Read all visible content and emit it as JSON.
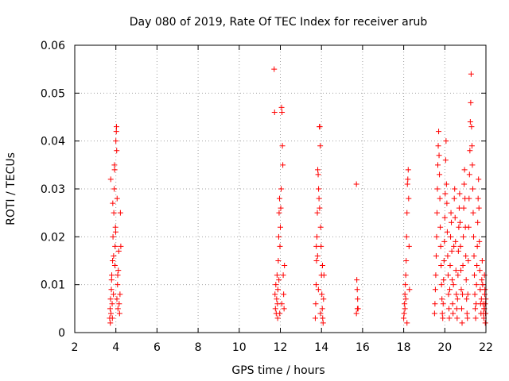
{
  "chart_data": {
    "type": "scatter",
    "title": "Day 080 of 2019, Rate Of TEC Index for receiver arub",
    "xlabel": "GPS time / hours",
    "ylabel": "ROTI / TECUs",
    "xlim": [
      2,
      22
    ],
    "ylim": [
      0,
      0.06
    ],
    "x_ticks": [
      2,
      4,
      6,
      8,
      10,
      12,
      14,
      16,
      18,
      20,
      22
    ],
    "y_ticks": [
      0,
      0.01,
      0.02,
      0.03,
      0.04,
      0.05,
      0.06
    ],
    "x_tick_labels": [
      "2",
      "4",
      "6",
      "8",
      "10",
      "12",
      "14",
      "16",
      "18",
      "20",
      "22"
    ],
    "y_tick_labels": [
      "0",
      "0.01",
      "0.02",
      "0.03",
      "0.04",
      "0.05",
      "0.06"
    ],
    "grid": true,
    "grid_style": "dotted",
    "marker": "+",
    "color": "#ff0000",
    "points": [
      [
        3.7,
        0.003
      ],
      [
        3.72,
        0.005
      ],
      [
        3.74,
        0.007
      ],
      [
        3.76,
        0.004
      ],
      [
        3.78,
        0.009
      ],
      [
        3.8,
        0.012
      ],
      [
        3.82,
        0.006
      ],
      [
        3.84,
        0.015
      ],
      [
        3.86,
        0.02
      ],
      [
        3.88,
        0.008
      ],
      [
        3.9,
        0.025
      ],
      [
        3.92,
        0.03
      ],
      [
        3.94,
        0.034
      ],
      [
        3.96,
        0.018
      ],
      [
        3.98,
        0.022
      ],
      [
        4.0,
        0.04
      ],
      [
        4.02,
        0.042
      ],
      [
        4.04,
        0.038
      ],
      [
        4.06,
        0.028
      ],
      [
        4.08,
        0.01
      ],
      [
        4.1,
        0.005
      ],
      [
        4.12,
        0.013
      ],
      [
        4.14,
        0.017
      ],
      [
        4.16,
        0.006
      ],
      [
        4.18,
        0.004
      ],
      [
        4.2,
        0.008
      ],
      [
        4.22,
        0.025
      ],
      [
        4.24,
        0.018
      ],
      [
        3.75,
        0.032
      ],
      [
        3.85,
        0.027
      ],
      [
        3.95,
        0.014
      ],
      [
        4.05,
        0.007
      ],
      [
        3.79,
        0.011
      ],
      [
        3.89,
        0.016
      ],
      [
        3.99,
        0.021
      ],
      [
        4.09,
        0.012
      ],
      [
        3.73,
        0.002
      ],
      [
        3.83,
        0.003
      ],
      [
        3.93,
        0.035
      ],
      [
        4.03,
        0.043
      ],
      [
        11.7,
        0.055
      ],
      [
        11.72,
        0.046
      ],
      [
        11.74,
        0.008
      ],
      [
        11.76,
        0.005
      ],
      [
        11.78,
        0.01
      ],
      [
        11.8,
        0.004
      ],
      [
        11.82,
        0.007
      ],
      [
        11.84,
        0.012
      ],
      [
        11.86,
        0.006
      ],
      [
        11.88,
        0.009
      ],
      [
        11.9,
        0.015
      ],
      [
        11.92,
        0.02
      ],
      [
        11.94,
        0.025
      ],
      [
        11.96,
        0.028
      ],
      [
        11.98,
        0.018
      ],
      [
        12.0,
        0.022
      ],
      [
        12.02,
        0.026
      ],
      [
        12.04,
        0.03
      ],
      [
        12.06,
        0.047
      ],
      [
        12.08,
        0.046
      ],
      [
        12.1,
        0.039
      ],
      [
        12.12,
        0.035
      ],
      [
        12.14,
        0.012
      ],
      [
        12.16,
        0.008
      ],
      [
        12.18,
        0.005
      ],
      [
        12.2,
        0.014
      ],
      [
        11.87,
        0.003
      ],
      [
        11.97,
        0.004
      ],
      [
        12.07,
        0.006
      ],
      [
        11.93,
        0.011
      ],
      [
        13.7,
        0.003
      ],
      [
        13.72,
        0.006
      ],
      [
        13.74,
        0.01
      ],
      [
        13.76,
        0.015
      ],
      [
        13.78,
        0.02
      ],
      [
        13.8,
        0.025
      ],
      [
        13.82,
        0.034
      ],
      [
        13.84,
        0.033
      ],
      [
        13.86,
        0.03
      ],
      [
        13.88,
        0.028
      ],
      [
        13.9,
        0.043
      ],
      [
        13.92,
        0.043
      ],
      [
        13.94,
        0.039
      ],
      [
        13.96,
        0.022
      ],
      [
        13.98,
        0.018
      ],
      [
        14.0,
        0.012
      ],
      [
        14.02,
        0.008
      ],
      [
        14.04,
        0.005
      ],
      [
        14.06,
        0.003
      ],
      [
        14.08,
        0.002
      ],
      [
        14.1,
        0.007
      ],
      [
        14.12,
        0.012
      ],
      [
        13.85,
        0.009
      ],
      [
        13.95,
        0.004
      ],
      [
        14.05,
        0.014
      ],
      [
        13.75,
        0.018
      ],
      [
        13.81,
        0.016
      ],
      [
        13.91,
        0.026
      ],
      [
        15.7,
        0.031
      ],
      [
        15.72,
        0.011
      ],
      [
        15.74,
        0.009
      ],
      [
        15.76,
        0.007
      ],
      [
        15.78,
        0.005
      ],
      [
        15.7,
        0.004
      ],
      [
        15.75,
        0.005
      ],
      [
        18.0,
        0.003
      ],
      [
        18.02,
        0.004
      ],
      [
        18.04,
        0.006
      ],
      [
        18.06,
        0.008
      ],
      [
        18.08,
        0.01
      ],
      [
        18.1,
        0.012
      ],
      [
        18.12,
        0.015
      ],
      [
        18.14,
        0.02
      ],
      [
        18.16,
        0.025
      ],
      [
        18.18,
        0.031
      ],
      [
        18.2,
        0.032
      ],
      [
        18.22,
        0.034
      ],
      [
        18.24,
        0.028
      ],
      [
        18.26,
        0.018
      ],
      [
        18.28,
        0.009
      ],
      [
        18.06,
        0.005
      ],
      [
        18.16,
        0.002
      ],
      [
        18.1,
        0.007
      ],
      [
        19.5,
        0.004
      ],
      [
        19.52,
        0.006
      ],
      [
        19.54,
        0.009
      ],
      [
        19.56,
        0.012
      ],
      [
        19.58,
        0.016
      ],
      [
        19.6,
        0.02
      ],
      [
        19.62,
        0.025
      ],
      [
        19.64,
        0.03
      ],
      [
        19.66,
        0.035
      ],
      [
        19.68,
        0.039
      ],
      [
        19.7,
        0.042
      ],
      [
        19.72,
        0.037
      ],
      [
        19.74,
        0.033
      ],
      [
        19.76,
        0.028
      ],
      [
        19.78,
        0.022
      ],
      [
        19.8,
        0.018
      ],
      [
        19.82,
        0.014
      ],
      [
        19.84,
        0.01
      ],
      [
        19.86,
        0.007
      ],
      [
        19.88,
        0.004
      ],
      [
        19.9,
        0.003
      ],
      [
        19.92,
        0.006
      ],
      [
        19.94,
        0.011
      ],
      [
        19.96,
        0.015
      ],
      [
        19.98,
        0.019
      ],
      [
        20.0,
        0.024
      ],
      [
        20.02,
        0.029
      ],
      [
        20.04,
        0.036
      ],
      [
        20.06,
        0.04
      ],
      [
        20.08,
        0.031
      ],
      [
        20.1,
        0.027
      ],
      [
        20.12,
        0.021
      ],
      [
        20.14,
        0.016
      ],
      [
        20.16,
        0.012
      ],
      [
        20.18,
        0.008
      ],
      [
        20.2,
        0.005
      ],
      [
        20.22,
        0.003
      ],
      [
        20.24,
        0.009
      ],
      [
        20.26,
        0.014
      ],
      [
        20.28,
        0.02
      ],
      [
        20.3,
        0.025
      ],
      [
        20.32,
        0.023
      ],
      [
        20.34,
        0.017
      ],
      [
        20.36,
        0.011
      ],
      [
        20.38,
        0.006
      ],
      [
        20.4,
        0.004
      ],
      [
        20.42,
        0.01
      ],
      [
        20.44,
        0.018
      ],
      [
        20.46,
        0.028
      ],
      [
        20.48,
        0.03
      ],
      [
        20.5,
        0.024
      ],
      [
        20.52,
        0.019
      ],
      [
        20.54,
        0.013
      ],
      [
        20.56,
        0.008
      ],
      [
        20.58,
        0.005
      ],
      [
        20.6,
        0.003
      ],
      [
        20.62,
        0.007
      ],
      [
        20.64,
        0.012
      ],
      [
        20.66,
        0.017
      ],
      [
        20.68,
        0.022
      ],
      [
        20.7,
        0.026
      ],
      [
        20.72,
        0.029
      ],
      [
        20.74,
        0.023
      ],
      [
        20.76,
        0.018
      ],
      [
        20.78,
        0.013
      ],
      [
        20.8,
        0.009
      ],
      [
        20.82,
        0.005
      ],
      [
        20.84,
        0.002
      ],
      [
        20.86,
        0.008
      ],
      [
        20.88,
        0.014
      ],
      [
        20.9,
        0.02
      ],
      [
        20.92,
        0.026
      ],
      [
        20.94,
        0.031
      ],
      [
        20.96,
        0.034
      ],
      [
        20.98,
        0.028
      ],
      [
        21.0,
        0.022
      ],
      [
        21.02,
        0.016
      ],
      [
        21.04,
        0.011
      ],
      [
        21.06,
        0.007
      ],
      [
        21.08,
        0.004
      ],
      [
        21.1,
        0.003
      ],
      [
        21.12,
        0.008
      ],
      [
        21.14,
        0.015
      ],
      [
        21.16,
        0.022
      ],
      [
        21.18,
        0.028
      ],
      [
        21.2,
        0.033
      ],
      [
        21.22,
        0.038
      ],
      [
        21.24,
        0.044
      ],
      [
        21.26,
        0.048
      ],
      [
        21.28,
        0.054
      ],
      [
        21.3,
        0.043
      ],
      [
        21.32,
        0.039
      ],
      [
        21.34,
        0.035
      ],
      [
        21.36,
        0.03
      ],
      [
        21.38,
        0.025
      ],
      [
        21.4,
        0.02
      ],
      [
        21.42,
        0.016
      ],
      [
        21.44,
        0.012
      ],
      [
        21.46,
        0.008
      ],
      [
        21.48,
        0.005
      ],
      [
        21.5,
        0.003
      ],
      [
        21.52,
        0.006
      ],
      [
        21.54,
        0.01
      ],
      [
        21.56,
        0.014
      ],
      [
        21.58,
        0.018
      ],
      [
        21.6,
        0.023
      ],
      [
        21.62,
        0.028
      ],
      [
        21.64,
        0.032
      ],
      [
        21.66,
        0.026
      ],
      [
        21.68,
        0.019
      ],
      [
        21.7,
        0.013
      ],
      [
        21.72,
        0.009
      ],
      [
        21.74,
        0.006
      ],
      [
        21.76,
        0.004
      ],
      [
        21.78,
        0.007
      ],
      [
        21.8,
        0.011
      ],
      [
        21.82,
        0.015
      ],
      [
        21.84,
        0.01
      ],
      [
        21.86,
        0.006
      ],
      [
        21.88,
        0.004
      ],
      [
        21.9,
        0.003
      ],
      [
        21.92,
        0.005
      ],
      [
        21.94,
        0.008
      ],
      [
        21.96,
        0.006
      ],
      [
        21.98,
        0.004
      ],
      [
        21.99,
        0.007
      ],
      [
        21.97,
        0.002
      ],
      [
        21.95,
        0.009
      ],
      [
        21.93,
        0.012
      ],
      [
        21.91,
        0.005
      ]
    ]
  }
}
